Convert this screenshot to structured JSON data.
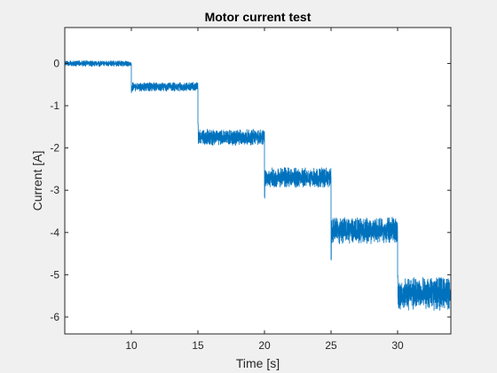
{
  "chart_data": {
    "type": "line",
    "title": "Motor current test",
    "xlabel": "Time [s]",
    "ylabel": "Current [A]",
    "xlim": [
      5,
      34
    ],
    "ylim": [
      -6.4,
      0.85
    ],
    "xticks": [
      10,
      15,
      20,
      25,
      30
    ],
    "xtick_labels": [
      "10",
      "15",
      "20",
      "25",
      "30"
    ],
    "yticks": [
      0,
      -1,
      -2,
      -3,
      -4,
      -5,
      -6
    ],
    "ytick_labels": [
      "0",
      "-1",
      "-2",
      "-3",
      "-4",
      "-5",
      "-6"
    ],
    "grid": false,
    "line_color": "#0072BD",
    "series": [
      {
        "segments": [
          {
            "x_start": 5,
            "x_end": 10,
            "level": 0.0,
            "noise_amplitude": 0.06
          },
          {
            "x_start": 10,
            "x_end": 15,
            "level": -0.55,
            "noise_amplitude": 0.09
          },
          {
            "x_start": 15,
            "x_end": 20,
            "level": -1.75,
            "noise_amplitude": 0.16
          },
          {
            "x_start": 20,
            "x_end": 25,
            "level": -2.7,
            "noise_amplitude": 0.2
          },
          {
            "x_start": 25,
            "x_end": 30,
            "level": -3.95,
            "noise_amplitude": 0.26
          },
          {
            "x_start": 30,
            "x_end": 34,
            "level": -5.45,
            "noise_amplitude": 0.32
          }
        ],
        "transient_values": [
          -0.02,
          -0.65,
          -1.45,
          -3.2,
          -4.6,
          -5.05
        ]
      }
    ]
  }
}
